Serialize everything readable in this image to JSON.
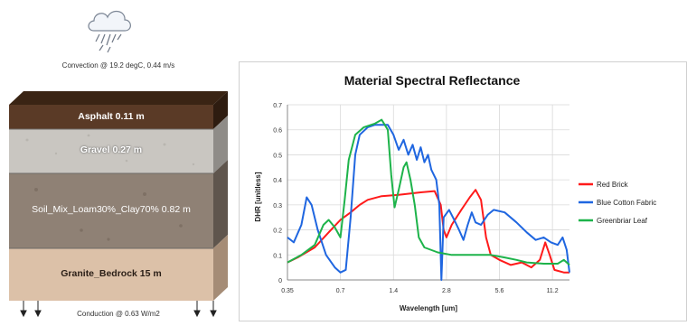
{
  "scene": {
    "convection_label": "Convection @ 19.2 degC, 0.44 m/s",
    "conduction_label": "Conduction @ 0.63 W/m2",
    "cloud_icon": "rain-cloud-icon",
    "layers": [
      {
        "label": "Asphalt  0.11 m",
        "color": "#5a3a26",
        "text_color": "#ffffff"
      },
      {
        "label": "Gravel  0.27 m",
        "color": "#c9c6c1",
        "text_color": "#ffffff"
      },
      {
        "label": "Soil_Mix_Loam30%_Clay70%  0.82 m",
        "color": "#8f8175",
        "text_color": "#ffffff"
      },
      {
        "label": "Granite_Bedrock  15 m",
        "color": "#dcc1a8",
        "text_color": "#2a1e16"
      }
    ]
  },
  "chart_data": {
    "type": "line",
    "title": "Material Spectral Reflectance",
    "xlabel": "Wavelength [um]",
    "ylabel": "DHR [unitless]",
    "x_scale": "log",
    "xlim": [
      0.35,
      14
    ],
    "ylim": [
      0,
      0.7
    ],
    "y_ticks": [
      "0",
      "0.1",
      "0.2",
      "0.3",
      "0.4",
      "0.5",
      "0.6",
      "0.7"
    ],
    "x_ticks": [
      "0.35",
      "0.7",
      "1.4",
      "2.8",
      "5.6",
      "11.2"
    ],
    "grid": true,
    "legend_position": "right",
    "series": [
      {
        "name": "Red Brick",
        "color": "#ff1a1a",
        "points": [
          [
            0.35,
            0.07
          ],
          [
            0.4,
            0.09
          ],
          [
            0.5,
            0.13
          ],
          [
            0.6,
            0.19
          ],
          [
            0.7,
            0.24
          ],
          [
            0.8,
            0.27
          ],
          [
            0.9,
            0.3
          ],
          [
            1.0,
            0.32
          ],
          [
            1.2,
            0.335
          ],
          [
            1.5,
            0.34
          ],
          [
            2.0,
            0.35
          ],
          [
            2.4,
            0.355
          ],
          [
            2.6,
            0.3
          ],
          [
            2.7,
            0.2
          ],
          [
            2.8,
            0.17
          ],
          [
            3.0,
            0.22
          ],
          [
            3.4,
            0.28
          ],
          [
            3.8,
            0.33
          ],
          [
            4.1,
            0.36
          ],
          [
            4.4,
            0.32
          ],
          [
            4.7,
            0.17
          ],
          [
            5.0,
            0.1
          ],
          [
            5.6,
            0.08
          ],
          [
            6.5,
            0.06
          ],
          [
            7.5,
            0.07
          ],
          [
            8.5,
            0.05
          ],
          [
            9.5,
            0.08
          ],
          [
            10.2,
            0.15
          ],
          [
            10.8,
            0.1
          ],
          [
            11.5,
            0.04
          ],
          [
            13.0,
            0.03
          ],
          [
            14.0,
            0.03
          ]
        ]
      },
      {
        "name": "Blue Cotton Fabric",
        "color": "#1f66e0",
        "points": [
          [
            0.35,
            0.17
          ],
          [
            0.38,
            0.15
          ],
          [
            0.42,
            0.22
          ],
          [
            0.45,
            0.33
          ],
          [
            0.48,
            0.3
          ],
          [
            0.52,
            0.2
          ],
          [
            0.58,
            0.1
          ],
          [
            0.65,
            0.05
          ],
          [
            0.7,
            0.03
          ],
          [
            0.75,
            0.04
          ],
          [
            0.8,
            0.25
          ],
          [
            0.85,
            0.5
          ],
          [
            0.9,
            0.58
          ],
          [
            1.0,
            0.61
          ],
          [
            1.1,
            0.62
          ],
          [
            1.2,
            0.62
          ],
          [
            1.3,
            0.62
          ],
          [
            1.4,
            0.58
          ],
          [
            1.5,
            0.52
          ],
          [
            1.6,
            0.56
          ],
          [
            1.7,
            0.5
          ],
          [
            1.8,
            0.54
          ],
          [
            1.9,
            0.48
          ],
          [
            2.0,
            0.53
          ],
          [
            2.1,
            0.47
          ],
          [
            2.2,
            0.5
          ],
          [
            2.3,
            0.44
          ],
          [
            2.45,
            0.4
          ],
          [
            2.55,
            0.3
          ],
          [
            2.62,
            0.0
          ],
          [
            2.7,
            0.25
          ],
          [
            2.9,
            0.28
          ],
          [
            3.1,
            0.24
          ],
          [
            3.3,
            0.2
          ],
          [
            3.5,
            0.16
          ],
          [
            3.7,
            0.22
          ],
          [
            3.9,
            0.27
          ],
          [
            4.1,
            0.23
          ],
          [
            4.4,
            0.22
          ],
          [
            4.8,
            0.26
          ],
          [
            5.2,
            0.28
          ],
          [
            6.0,
            0.27
          ],
          [
            7.0,
            0.23
          ],
          [
            8.0,
            0.19
          ],
          [
            9.0,
            0.16
          ],
          [
            10.0,
            0.17
          ],
          [
            11.0,
            0.15
          ],
          [
            12.0,
            0.14
          ],
          [
            12.8,
            0.17
          ],
          [
            13.5,
            0.12
          ],
          [
            14.0,
            0.03
          ]
        ]
      },
      {
        "name": "Greenbriar Leaf",
        "color": "#1db34a",
        "points": [
          [
            0.35,
            0.07
          ],
          [
            0.42,
            0.1
          ],
          [
            0.5,
            0.14
          ],
          [
            0.56,
            0.22
          ],
          [
            0.6,
            0.24
          ],
          [
            0.65,
            0.21
          ],
          [
            0.7,
            0.17
          ],
          [
            0.74,
            0.32
          ],
          [
            0.78,
            0.48
          ],
          [
            0.85,
            0.58
          ],
          [
            0.95,
            0.61
          ],
          [
            1.1,
            0.625
          ],
          [
            1.2,
            0.64
          ],
          [
            1.3,
            0.6
          ],
          [
            1.36,
            0.42
          ],
          [
            1.42,
            0.29
          ],
          [
            1.5,
            0.36
          ],
          [
            1.6,
            0.45
          ],
          [
            1.66,
            0.47
          ],
          [
            1.75,
            0.4
          ],
          [
            1.85,
            0.3
          ],
          [
            1.95,
            0.17
          ],
          [
            2.1,
            0.13
          ],
          [
            2.5,
            0.11
          ],
          [
            3.0,
            0.1
          ],
          [
            4.0,
            0.1
          ],
          [
            5.0,
            0.1
          ],
          [
            6.0,
            0.09
          ],
          [
            7.0,
            0.08
          ],
          [
            8.0,
            0.07
          ],
          [
            10.0,
            0.065
          ],
          [
            12.0,
            0.065
          ],
          [
            13.0,
            0.08
          ],
          [
            14.0,
            0.06
          ]
        ]
      }
    ]
  }
}
